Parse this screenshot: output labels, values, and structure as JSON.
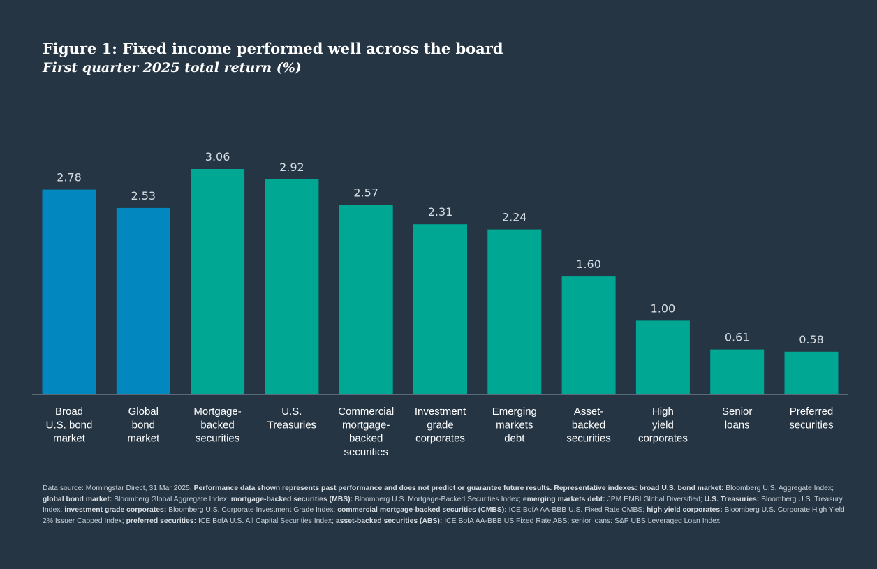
{
  "title": "Figure 1: Fixed income performed well across the board",
  "subtitle": "First quarter 2025 total return (%)",
  "colors": {
    "background": "#253544",
    "highlight_bar": "#0288bf",
    "default_bar": "#00a894",
    "value_label": "#d6dde3",
    "axis": "#5b6a78"
  },
  "chart_data": {
    "type": "bar",
    "title": "Figure 1: Fixed income performed well across the board",
    "subtitle": "First quarter 2025 total return (%)",
    "xlabel": "",
    "ylabel": "",
    "ylim": [
      0,
      3.06
    ],
    "grid": false,
    "legend": "none",
    "categories": [
      "Broad U.S. bond market",
      "Global bond market",
      "Mortgage-backed securities",
      "U.S. Treasuries",
      "Commercial mortgage-backed securities",
      "Investment grade corporates",
      "Emerging markets debt",
      "Asset-backed securities",
      "High yield corporates",
      "Senior loans",
      "Preferred securities"
    ],
    "category_lines": [
      [
        "Broad",
        "U.S. bond",
        "market"
      ],
      [
        "Global",
        "bond",
        "market"
      ],
      [
        "Mortgage-",
        "backed",
        "securities"
      ],
      [
        "U.S.",
        "Treasuries"
      ],
      [
        "Commercial",
        "mortgage-",
        "backed",
        "securities"
      ],
      [
        "Investment",
        "grade",
        "corporates"
      ],
      [
        "Emerging",
        "markets",
        "debt"
      ],
      [
        "Asset-",
        "backed",
        "securities"
      ],
      [
        "High",
        "yield",
        "corporates"
      ],
      [
        "Senior",
        "loans"
      ],
      [
        "Preferred",
        "securities"
      ]
    ],
    "values": [
      2.78,
      2.53,
      3.06,
      2.92,
      2.57,
      2.31,
      2.24,
      1.6,
      1.0,
      0.61,
      0.58
    ],
    "value_labels": [
      "2.78",
      "2.53",
      "3.06",
      "2.92",
      "2.57",
      "2.31",
      "2.24",
      "1.60",
      "1.00",
      "0.61",
      "0.58"
    ],
    "highlighted": [
      "Broad U.S. bond market",
      "Global bond market"
    ]
  },
  "footnote": [
    {
      "text": "Data source: Morningstar Direct, 31 Mar 2025. ",
      "bold": false
    },
    {
      "text": "Performance data shown represents past performance and does not predict or guarantee future results. Representative indexes: broad U.S. bond market: ",
      "bold": true
    },
    {
      "text": "Bloomberg U.S. Aggregate Index; ",
      "bold": false
    },
    {
      "text": "global bond market: ",
      "bold": true
    },
    {
      "text": "Bloomberg Global Aggregate Index; ",
      "bold": false
    },
    {
      "text": "mortgage-backed securities (MBS): ",
      "bold": true
    },
    {
      "text": "Bloomberg U.S. Mortgage-Backed Securities Index; ",
      "bold": false
    },
    {
      "text": "emerging markets debt: ",
      "bold": true
    },
    {
      "text": "JPM EMBI Global Diversified; ",
      "bold": false
    },
    {
      "text": "U.S. Treasuries: ",
      "bold": true
    },
    {
      "text": "Bloomberg U.S. Treasury Index; ",
      "bold": false
    },
    {
      "text": "investment grade corporates: ",
      "bold": true
    },
    {
      "text": "Bloomberg U.S. Corporate Investment Grade Index; ",
      "bold": false
    },
    {
      "text": "commercial mortgage-backed securities (CMBS): ",
      "bold": true
    },
    {
      "text": "ICE BofA AA-BBB U.S. Fixed Rate CMBS; ",
      "bold": false
    },
    {
      "text": "high yield corporates: ",
      "bold": true
    },
    {
      "text": "Bloomberg U.S. Corporate High Yield 2% Issuer Capped Index; ",
      "bold": false
    },
    {
      "text": "preferred securities: ",
      "bold": true
    },
    {
      "text": "ICE BofA U.S. All Capital Securities Index; ",
      "bold": false
    },
    {
      "text": "asset-backed securities (ABS): ",
      "bold": true
    },
    {
      "text": "ICE BofA AA-BBB US Fixed Rate ABS; senior loans: S&P UBS Leveraged Loan Index.",
      "bold": false
    }
  ]
}
